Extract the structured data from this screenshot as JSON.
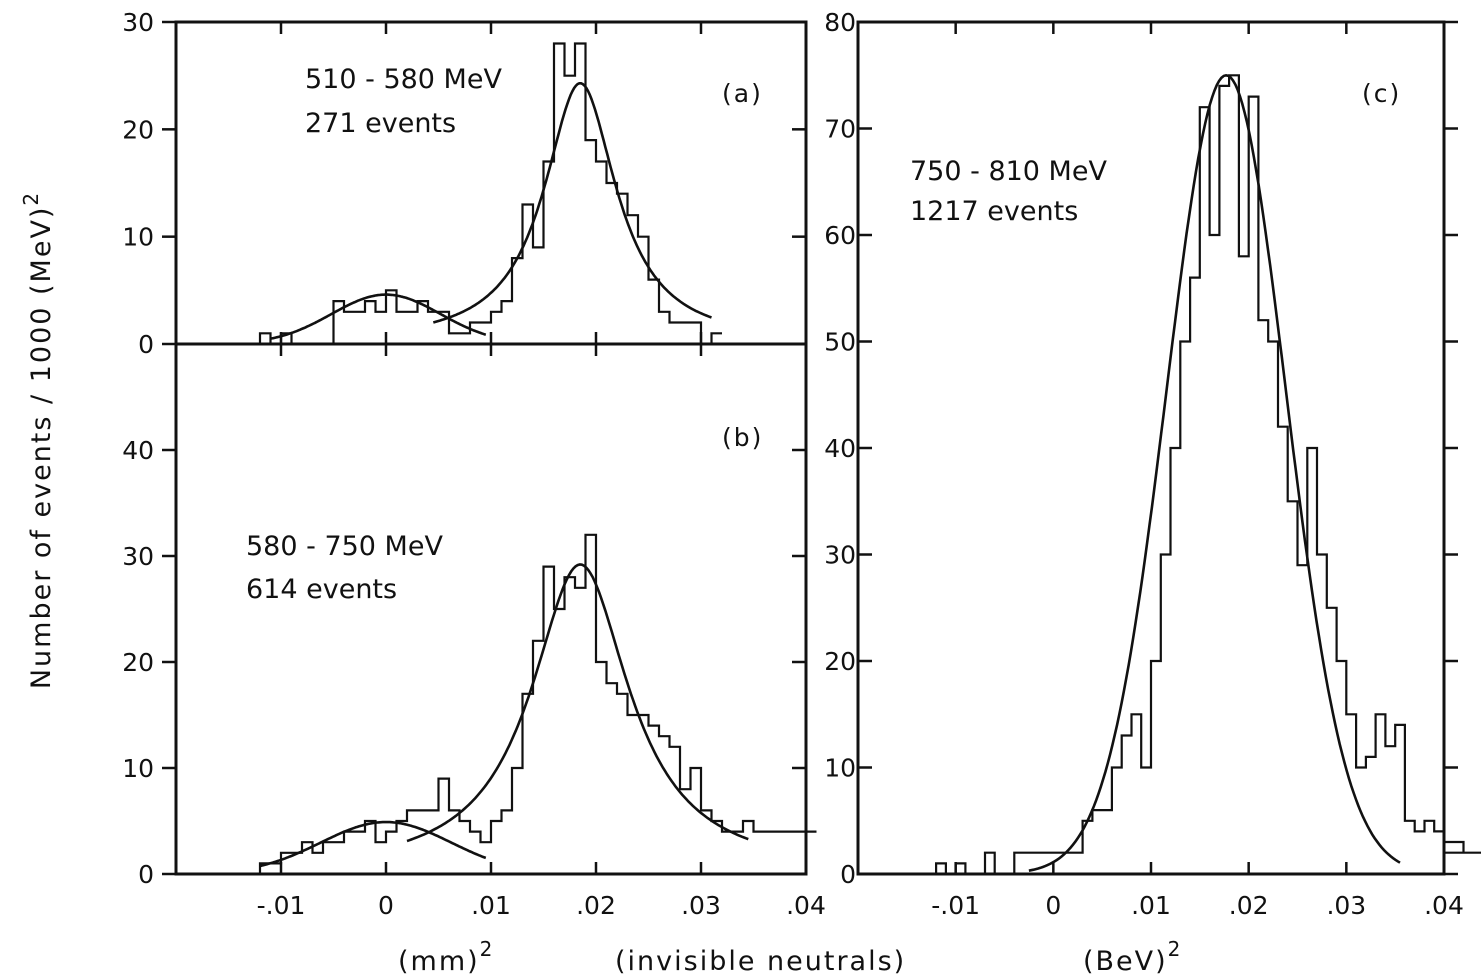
{
  "figure": {
    "ylabel": "Number of events / 1000 (MeV)",
    "ylabel_exponent": "2",
    "xlabel_left": "(mm)",
    "xlabel_left_exponent": "2",
    "xlabel_middle": "(invisible neutrals)",
    "xlabel_right": "(BeV)",
    "xlabel_right_exponent": "2",
    "ink_color": "#111111",
    "background": "#ffffff"
  },
  "chart_data": [
    {
      "id": "a",
      "type": "histogram",
      "panel_label": "(a)",
      "annotation_line1": "510 - 580 MeV",
      "annotation_line2": "271 events",
      "xlim": [
        -0.02,
        0.04
      ],
      "ylim": [
        0,
        30
      ],
      "yticks": [
        0,
        10,
        20,
        30
      ],
      "ytick_labels": [
        "0",
        "10",
        "20",
        "30"
      ],
      "bin_width": 0.001,
      "bins_start": -0.012,
      "counts": [
        1,
        0,
        1,
        0,
        0,
        0,
        0,
        4,
        3,
        3,
        4,
        3,
        5,
        3,
        3,
        4,
        3,
        3,
        1,
        1,
        2,
        2,
        3,
        4,
        8,
        13,
        9,
        17,
        28,
        25,
        28,
        19,
        17,
        15,
        14,
        12,
        10,
        6,
        3,
        2,
        2,
        2,
        0,
        1
      ],
      "curves": [
        {
          "model": "gaussian",
          "amplitude": 4.6,
          "mean": 0.0,
          "sigma": 0.0052,
          "x_range": [
            -0.011,
            0.0095
          ]
        },
        {
          "model": "breit-wigner",
          "amplitude": 24.3,
          "mean": 0.0185,
          "half_width": 0.0042,
          "x_range": [
            0.0045,
            0.031
          ]
        }
      ]
    },
    {
      "id": "b",
      "type": "histogram",
      "panel_label": "(b)",
      "annotation_line1": "580 - 750 MeV",
      "annotation_line2": "614 events",
      "xlim": [
        -0.02,
        0.04
      ],
      "ylim": [
        0,
        50
      ],
      "yticks": [
        0,
        10,
        20,
        30,
        40
      ],
      "ytick_labels": [
        "0",
        "10",
        "20",
        "30",
        "40"
      ],
      "xticks": [
        -0.01,
        0,
        0.01,
        0.02,
        0.03,
        0.04
      ],
      "xtick_labels": [
        "-.01",
        "0",
        ".01",
        ".02",
        ".03",
        ".04"
      ],
      "bin_width": 0.001,
      "bins_start": -0.012,
      "counts": [
        1,
        1,
        2,
        2,
        3,
        2,
        3,
        3,
        4,
        4,
        5,
        3,
        4,
        5,
        6,
        6,
        6,
        9,
        6,
        5,
        4,
        3,
        5,
        6,
        10,
        17,
        22,
        29,
        25,
        28,
        27,
        32,
        20,
        18,
        17,
        15,
        15,
        14,
        13,
        12,
        8,
        10,
        6,
        5,
        4,
        4,
        5,
        4,
        4,
        4,
        4,
        4,
        4
      ],
      "curves": [
        {
          "model": "gaussian",
          "amplitude": 4.9,
          "mean": 0.0,
          "sigma": 0.0062,
          "x_range": [
            -0.012,
            0.0095
          ]
        },
        {
          "model": "breit-wigner",
          "amplitude": 29.2,
          "mean": 0.0185,
          "half_width": 0.0057,
          "x_range": [
            0.002,
            0.0345
          ]
        }
      ]
    },
    {
      "id": "c",
      "type": "histogram",
      "panel_label": "(c)",
      "annotation_line1": "750 - 810 MeV",
      "annotation_line2": "1217 events",
      "xlim": [
        -0.02,
        0.04
      ],
      "ylim": [
        0,
        80
      ],
      "yticks": [
        0,
        10,
        20,
        30,
        40,
        50,
        60,
        70,
        80
      ],
      "ytick_labels": [
        "0",
        "10",
        "20",
        "30",
        "40",
        "50",
        "60",
        "70",
        "80"
      ],
      "xticks": [
        -0.01,
        0,
        0.01,
        0.02,
        0.03,
        0.04
      ],
      "xtick_labels": [
        "-.01",
        "0",
        ".01",
        ".02",
        ".03",
        ".04"
      ],
      "bin_width": 0.001,
      "bins_start": -0.012,
      "counts": [
        1,
        0,
        1,
        0,
        0,
        2,
        0,
        0,
        2,
        2,
        2,
        2,
        2,
        2,
        2,
        5,
        6,
        6,
        10,
        13,
        15,
        10,
        20,
        30,
        40,
        50,
        56,
        72,
        60,
        74,
        75,
        58,
        73,
        52,
        50,
        42,
        35,
        29,
        40,
        30,
        25,
        20,
        15,
        10,
        11,
        15,
        12,
        14,
        5,
        4,
        5,
        4,
        3,
        3,
        2,
        2
      ],
      "curves": [
        {
          "model": "gaussian",
          "amplitude": 75,
          "mean": 0.0177,
          "sigma": 0.0061,
          "x_range": [
            -0.0025,
            0.0355
          ]
        }
      ]
    }
  ]
}
